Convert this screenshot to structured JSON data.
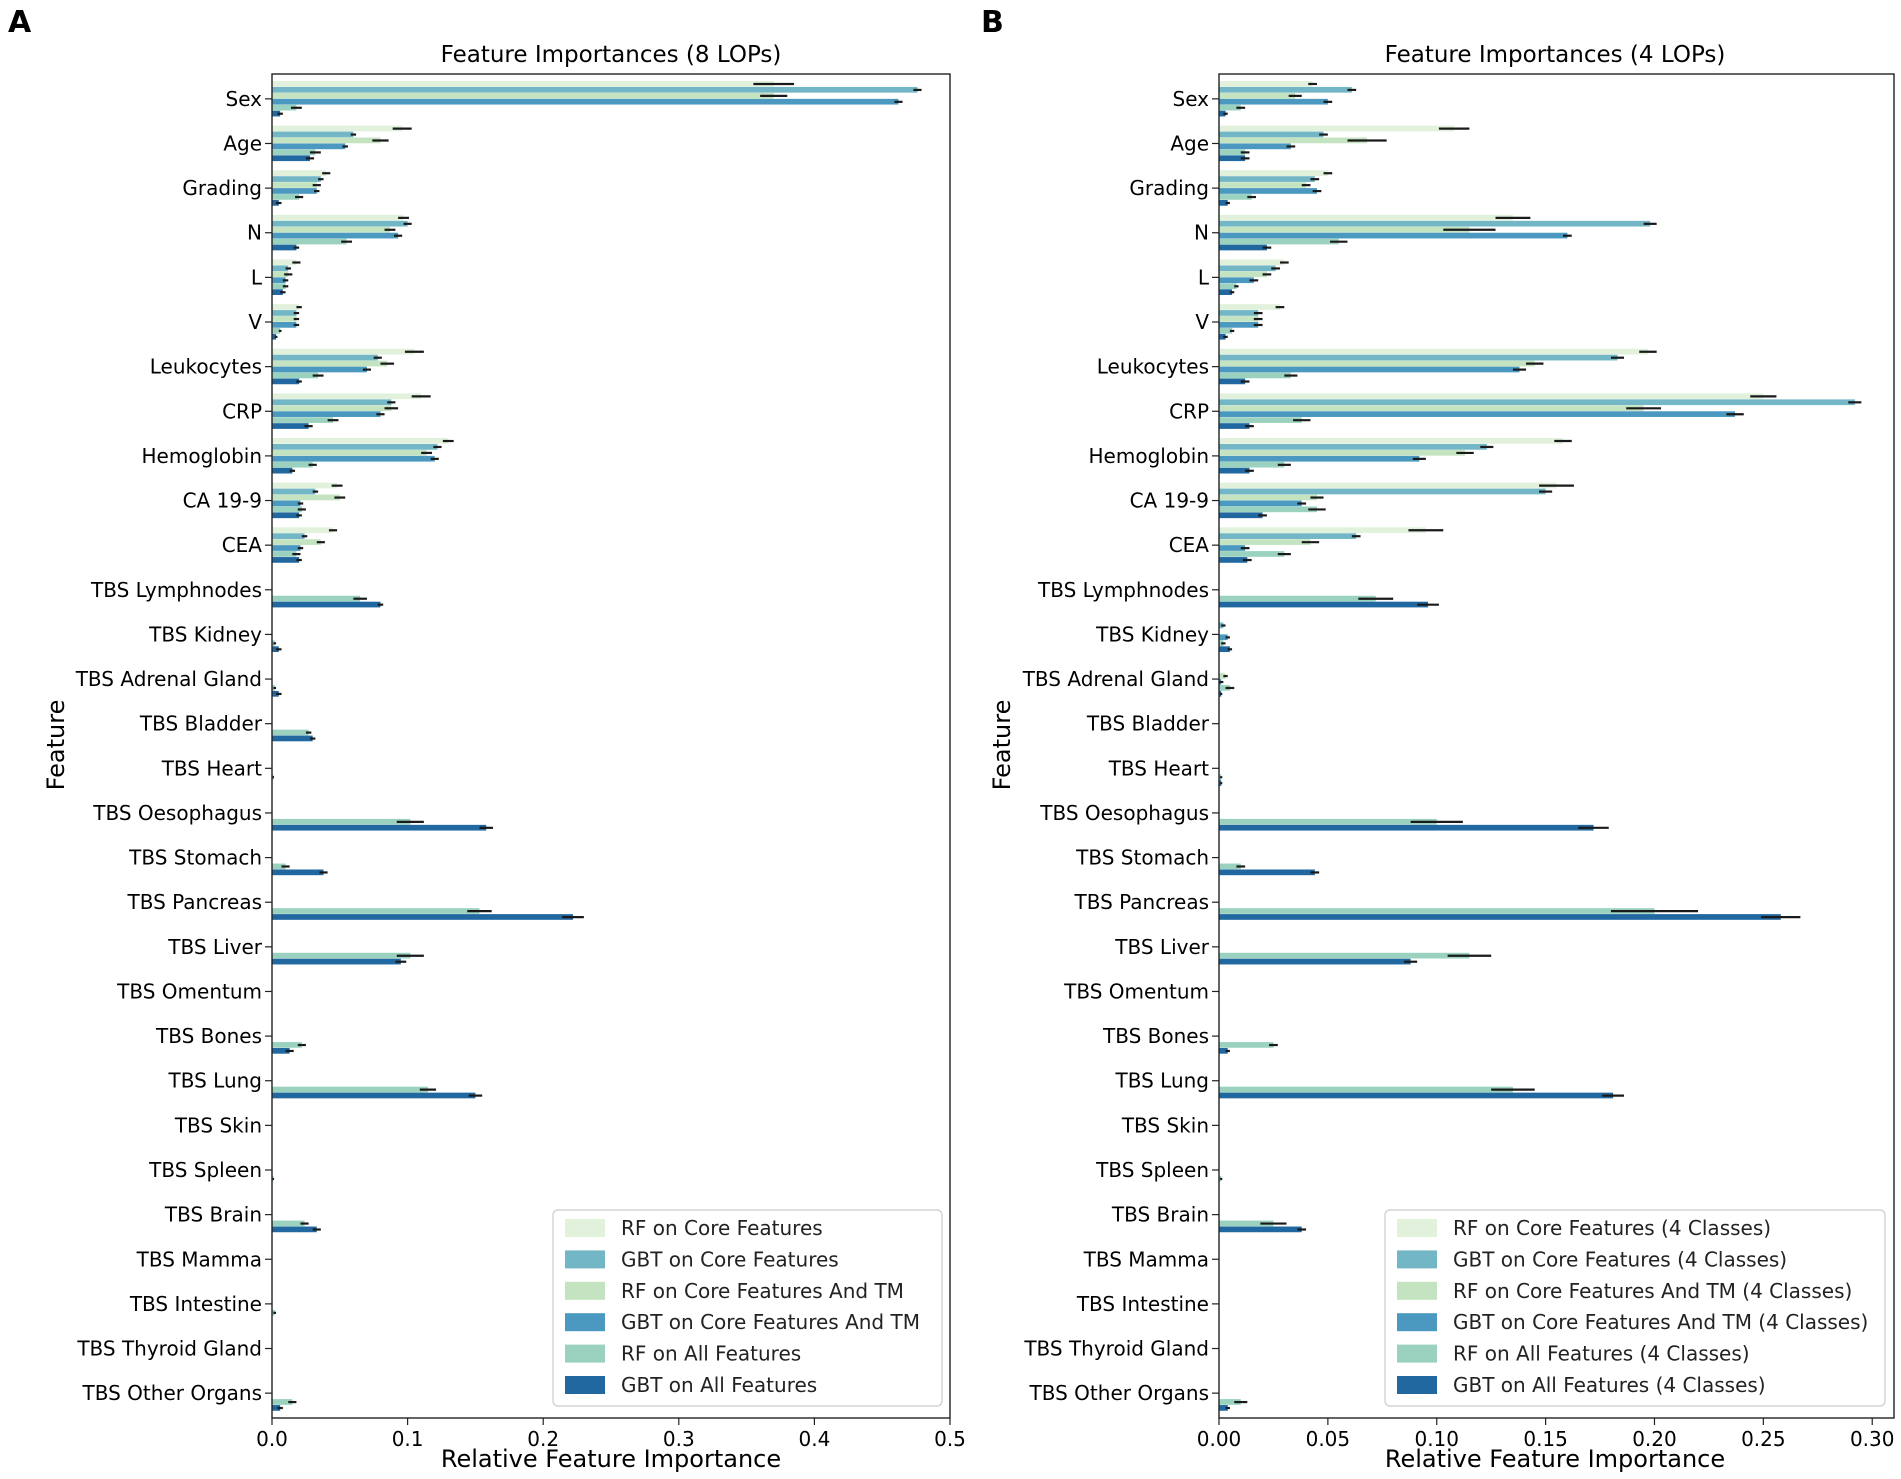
{
  "panels": [
    {
      "letter": "A",
      "chart_data": {
        "type": "bar",
        "orientation": "horizontal",
        "title": "Feature Importances (8 LOPs)",
        "xlabel": "Relative Feature Importance",
        "ylabel": "Feature",
        "xlim": [
          0,
          0.5
        ],
        "xticks": [
          0.0,
          0.1,
          0.2,
          0.3,
          0.4,
          0.5
        ],
        "xtick_labels": [
          "0.0",
          "0.1",
          "0.2",
          "0.3",
          "0.4",
          "0.5"
        ],
        "legend_position": "lower-right",
        "categories": [
          "Sex",
          "Age",
          "Grading",
          "N",
          "L",
          "V",
          "Leukocytes",
          "CRP",
          "Hemoglobin",
          "CA 19-9",
          "CEA",
          "TBS Lymphnodes",
          "TBS Kidney",
          "TBS Adrenal Gland",
          "TBS Bladder",
          "TBS Heart",
          "TBS Oesophagus",
          "TBS Stomach",
          "TBS Pancreas",
          "TBS Liver",
          "TBS Omentum",
          "TBS Bones",
          "TBS Lung",
          "TBS Skin",
          "TBS Spleen",
          "TBS Brain",
          "TBS Mamma",
          "TBS Intestine",
          "TBS Thyroid Gland",
          "TBS Other Organs"
        ],
        "series": [
          {
            "name": "RF on Core Features",
            "color": "#e1f1dc",
            "values": [
              0.37,
              0.096,
              0.04,
              0.097,
              0.018,
              0.02,
              0.105,
              0.11,
              0.13,
              0.048,
              0.045,
              0,
              0,
              0,
              0,
              0,
              0,
              0,
              0,
              0,
              0,
              0,
              0,
              0,
              0,
              0,
              0,
              0,
              0,
              0
            ],
            "errors": [
              0.015,
              0.007,
              0.003,
              0.004,
              0.003,
              0.002,
              0.007,
              0.007,
              0.004,
              0.004,
              0.003,
              0,
              0,
              0,
              0,
              0,
              0,
              0,
              0,
              0,
              0,
              0,
              0,
              0,
              0,
              0,
              0,
              0,
              0,
              0
            ]
          },
          {
            "name": "GBT on Core Features",
            "color": "#73b7c6",
            "values": [
              0.476,
              0.06,
              0.036,
              0.1,
              0.012,
              0.018,
              0.078,
              0.088,
              0.122,
              0.032,
              0.024,
              0,
              0,
              0,
              0,
              0,
              0,
              0,
              0,
              0,
              0,
              0,
              0,
              0,
              0,
              0,
              0,
              0,
              0,
              0
            ],
            "errors": [
              0.003,
              0.002,
              0.002,
              0.003,
              0.002,
              0.002,
              0.003,
              0.003,
              0.003,
              0.002,
              0.002,
              0,
              0,
              0,
              0,
              0,
              0,
              0,
              0,
              0,
              0,
              0,
              0,
              0,
              0,
              0,
              0,
              0,
              0,
              0
            ]
          },
          {
            "name": "RF on Core Features And TM",
            "color": "#c4e3c0",
            "values": [
              0.37,
              0.08,
              0.033,
              0.087,
              0.012,
              0.018,
              0.085,
              0.088,
              0.114,
              0.05,
              0.036,
              0,
              0,
              0,
              0,
              0,
              0,
              0,
              0,
              0,
              0,
              0,
              0,
              0,
              0,
              0,
              0,
              0,
              0,
              0
            ],
            "errors": [
              0.01,
              0.006,
              0.003,
              0.004,
              0.003,
              0.002,
              0.005,
              0.005,
              0.004,
              0.004,
              0.003,
              0,
              0,
              0,
              0,
              0,
              0,
              0,
              0,
              0,
              0,
              0,
              0,
              0,
              0,
              0,
              0,
              0,
              0,
              0
            ]
          },
          {
            "name": "GBT on Core Features And TM",
            "color": "#4b98c0",
            "values": [
              0.462,
              0.054,
              0.033,
              0.093,
              0.01,
              0.018,
              0.07,
              0.08,
              0.12,
              0.021,
              0.021,
              0,
              0,
              0,
              0,
              0,
              0,
              0,
              0,
              0,
              0,
              0,
              0,
              0,
              0,
              0,
              0,
              0,
              0,
              0
            ],
            "errors": [
              0.003,
              0.002,
              0.002,
              0.003,
              0.002,
              0.002,
              0.003,
              0.003,
              0.003,
              0.002,
              0.002,
              0,
              0,
              0,
              0,
              0,
              0,
              0,
              0,
              0,
              0,
              0,
              0,
              0,
              0,
              0,
              0,
              0,
              0,
              0
            ]
          },
          {
            "name": "RF on All Features",
            "color": "#9bd2bf",
            "values": [
              0.018,
              0.032,
              0.02,
              0.055,
              0.01,
              0.006,
              0.034,
              0.045,
              0.03,
              0.022,
              0.018,
              0.065,
              0.002,
              0.002,
              0.027,
              0.001,
              0.102,
              0.01,
              0.153,
              0.102,
              0,
              0.022,
              0.115,
              0,
              0.001,
              0.024,
              0,
              0.002,
              0,
              0.015
            ],
            "errors": [
              0.004,
              0.004,
              0.003,
              0.004,
              0.002,
              0.001,
              0.004,
              0.004,
              0.003,
              0.003,
              0.003,
              0.005,
              0.001,
              0.001,
              0.002,
              0.0005,
              0.01,
              0.003,
              0.009,
              0.01,
              0,
              0.003,
              0.006,
              0,
              0.0005,
              0.003,
              0,
              0.001,
              0,
              0.003
            ]
          },
          {
            "name": "GBT on All Features",
            "color": "#2268a0",
            "values": [
              0.006,
              0.028,
              0.005,
              0.018,
              0.008,
              0.003,
              0.02,
              0.027,
              0.015,
              0.02,
              0.02,
              0.08,
              0.005,
              0.005,
              0.03,
              0,
              0.158,
              0.038,
              0.222,
              0.095,
              0,
              0.013,
              0.15,
              0,
              0,
              0.033,
              0,
              0,
              0,
              0.006
            ],
            "errors": [
              0.002,
              0.003,
              0.002,
              0.002,
              0.002,
              0.001,
              0.002,
              0.003,
              0.002,
              0.002,
              0.002,
              0.002,
              0.002,
              0.002,
              0.002,
              0,
              0.005,
              0.003,
              0.008,
              0.004,
              0,
              0.003,
              0.005,
              0,
              0,
              0.003,
              0,
              0,
              0,
              0.002
            ]
          }
        ]
      }
    },
    {
      "letter": "B",
      "chart_data": {
        "type": "bar",
        "orientation": "horizontal",
        "title": "Feature Importances (4 LOPs)",
        "xlabel": "Relative Feature Importance",
        "ylabel": "Feature",
        "xlim": [
          0,
          0.31
        ],
        "xticks": [
          0.0,
          0.05,
          0.1,
          0.15,
          0.2,
          0.25,
          0.3
        ],
        "xtick_labels": [
          "0.00",
          "0.05",
          "0.10",
          "0.15",
          "0.20",
          "0.25",
          "0.30"
        ],
        "legend_position": "lower-right",
        "categories": [
          "Sex",
          "Age",
          "Grading",
          "N",
          "L",
          "V",
          "Leukocytes",
          "CRP",
          "Hemoglobin",
          "CA 19-9",
          "CEA",
          "TBS Lymphnodes",
          "TBS Kidney",
          "TBS Adrenal Gland",
          "TBS Bladder",
          "TBS Heart",
          "TBS Oesophagus",
          "TBS Stomach",
          "TBS Pancreas",
          "TBS Liver",
          "TBS Omentum",
          "TBS Bones",
          "TBS Lung",
          "TBS Skin",
          "TBS Spleen",
          "TBS Brain",
          "TBS Mamma",
          "TBS Intestine",
          "TBS Thyroid Gland",
          "TBS Other Organs"
        ],
        "series": [
          {
            "name": "RF on Core Features (4 Classes)",
            "color": "#e1f1dc",
            "values": [
              0.043,
              0.108,
              0.05,
              0.135,
              0.03,
              0.028,
              0.197,
              0.25,
              0.158,
              0.155,
              0.095,
              0,
              0,
              0,
              0,
              0,
              0,
              0,
              0,
              0,
              0,
              0,
              0,
              0,
              0,
              0,
              0,
              0,
              0,
              0
            ],
            "errors": [
              0.002,
              0.007,
              0.002,
              0.008,
              0.002,
              0.002,
              0.004,
              0.006,
              0.004,
              0.008,
              0.008,
              0,
              0,
              0,
              0,
              0,
              0,
              0,
              0,
              0,
              0,
              0,
              0,
              0,
              0,
              0,
              0,
              0,
              0,
              0
            ]
          },
          {
            "name": "GBT on Core Features (4 Classes)",
            "color": "#73b7c6",
            "values": [
              0.061,
              0.048,
              0.044,
              0.198,
              0.026,
              0.018,
              0.183,
              0.292,
              0.123,
              0.15,
              0.063,
              0,
              0.002,
              0,
              0,
              0,
              0,
              0,
              0,
              0,
              0,
              0,
              0,
              0,
              0,
              0,
              0,
              0,
              0,
              0
            ],
            "errors": [
              0.002,
              0.002,
              0.002,
              0.003,
              0.002,
              0.002,
              0.003,
              0.003,
              0.003,
              0.003,
              0.002,
              0,
              0.001,
              0,
              0,
              0,
              0,
              0,
              0,
              0,
              0,
              0,
              0,
              0,
              0,
              0,
              0,
              0,
              0,
              0
            ]
          },
          {
            "name": "RF on Core Features And TM (4 Classes)",
            "color": "#c4e3c0",
            "values": [
              0.035,
              0.068,
              0.04,
              0.115,
              0.022,
              0.018,
              0.145,
              0.195,
              0.113,
              0.045,
              0.042,
              0,
              0,
              0.003,
              0,
              0,
              0,
              0,
              0,
              0,
              0,
              0,
              0,
              0,
              0,
              0,
              0,
              0,
              0,
              0
            ],
            "errors": [
              0.003,
              0.009,
              0.002,
              0.012,
              0.002,
              0.002,
              0.004,
              0.008,
              0.004,
              0.003,
              0.004,
              0,
              0,
              0.001,
              0,
              0,
              0,
              0,
              0,
              0,
              0,
              0,
              0,
              0,
              0,
              0,
              0,
              0,
              0,
              0
            ]
          },
          {
            "name": "GBT on Core Features And TM (4 Classes)",
            "color": "#4b98c0",
            "values": [
              0.05,
              0.033,
              0.045,
              0.16,
              0.016,
              0.018,
              0.138,
              0.237,
              0.092,
              0.038,
              0.012,
              0,
              0.004,
              0.001,
              0,
              0,
              0,
              0,
              0,
              0,
              0,
              0,
              0,
              0,
              0,
              0,
              0,
              0,
              0,
              0
            ],
            "errors": [
              0.002,
              0.002,
              0.002,
              0.002,
              0.002,
              0.002,
              0.003,
              0.004,
              0.003,
              0.002,
              0.002,
              0,
              0.001,
              0.001,
              0,
              0,
              0,
              0,
              0,
              0,
              0,
              0,
              0,
              0,
              0,
              0,
              0,
              0,
              0,
              0
            ]
          },
          {
            "name": "RF on All Features (4 Classes)",
            "color": "#9bd2bf",
            "values": [
              0.01,
              0.012,
              0.015,
              0.055,
              0.008,
              0.006,
              0.033,
              0.038,
              0.03,
              0.045,
              0.03,
              0.072,
              0.002,
              0.005,
              0,
              0.001,
              0.1,
              0.01,
              0.2,
              0.115,
              0,
              0.025,
              0.135,
              0,
              0.001,
              0.025,
              0,
              0,
              0,
              0.01
            ],
            "errors": [
              0.002,
              0.002,
              0.002,
              0.004,
              0.001,
              0.001,
              0.003,
              0.004,
              0.003,
              0.004,
              0.003,
              0.008,
              0.001,
              0.002,
              0,
              0.0005,
              0.012,
              0.002,
              0.02,
              0.01,
              0,
              0.002,
              0.01,
              0,
              0.0005,
              0.006,
              0,
              0,
              0,
              0.003
            ]
          },
          {
            "name": "GBT on All Features (4 Classes)",
            "color": "#2268a0",
            "values": [
              0.003,
              0.012,
              0.004,
              0.022,
              0.006,
              0.003,
              0.012,
              0.014,
              0.014,
              0.02,
              0.013,
              0.096,
              0.005,
              0.001,
              0,
              0.001,
              0.172,
              0.044,
              0.258,
              0.088,
              0,
              0.004,
              0.181,
              0,
              0,
              0.038,
              0,
              0,
              0,
              0.004
            ],
            "errors": [
              0.001,
              0.002,
              0.001,
              0.002,
              0.001,
              0.001,
              0.002,
              0.002,
              0.002,
              0.002,
              0.002,
              0.005,
              0.001,
              0.0005,
              0,
              0.0005,
              0.007,
              0.002,
              0.009,
              0.003,
              0,
              0.001,
              0.005,
              0,
              0,
              0.002,
              0,
              0,
              0,
              0.001
            ]
          }
        ]
      }
    }
  ]
}
